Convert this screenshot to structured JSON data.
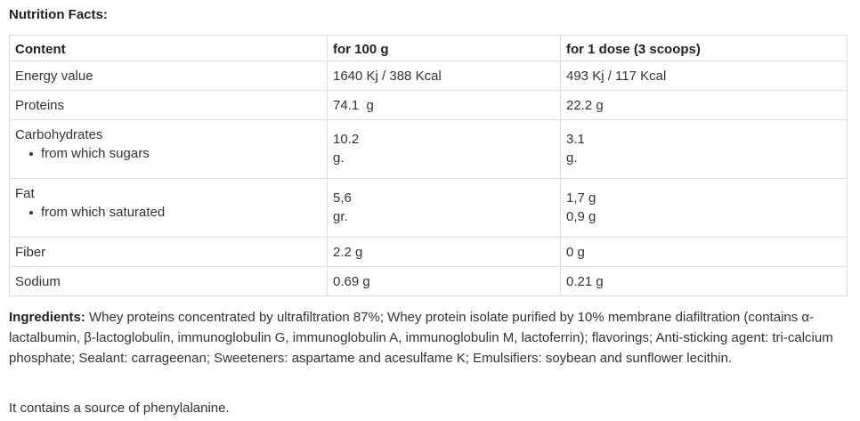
{
  "title": "Nutrition Facts:",
  "table": {
    "headers": [
      "Content",
      "for 100 g",
      "for 1 dose (3 scoops)"
    ],
    "rows": [
      {
        "label": "Energy value",
        "per100": "1640 Kj / 388 Kcal",
        "perDose": "493 Kj / 117 Kcal"
      },
      {
        "label": "Proteins",
        "per100": "74.1  g",
        "perDose": "22.2 g"
      },
      {
        "label": "Carbohydrates",
        "sub": "from which sugars",
        "per100": "10.2",
        "per100b": "g.",
        "perDose": "3.1",
        "perDoseb": "g."
      },
      {
        "label": "Fat",
        "sub": "from which saturated",
        "per100": "5,6",
        "per100b": "gr.",
        "perDose": "1,7 g",
        "perDoseb": "0,9 g"
      },
      {
        "label": "Fiber",
        "per100": "2.2 g",
        "perDose": "0 g"
      },
      {
        "label": "Sodium",
        "per100": "0.69 g",
        "perDose": "0.21 g"
      }
    ]
  },
  "ingredients": {
    "label": "Ingredients:",
    "text": " Whey proteins concentrated by ultrafiltration 87%; Whey protein isolate purified by 10% membrane diafiltration (contains α-lactalbumin, β-lactoglobulin, immunoglobulin G, immunoglobulin A, immunoglobulin M, lactoferrin); flavorings; Anti-sticking agent: tri-calcium phosphate; Sealant: carrageenan; Sweeteners: aspartame and acesulfame K; Emulsifiers: soybean and sunflower lecithin."
  },
  "note": "It contains a source of phenylalanine."
}
